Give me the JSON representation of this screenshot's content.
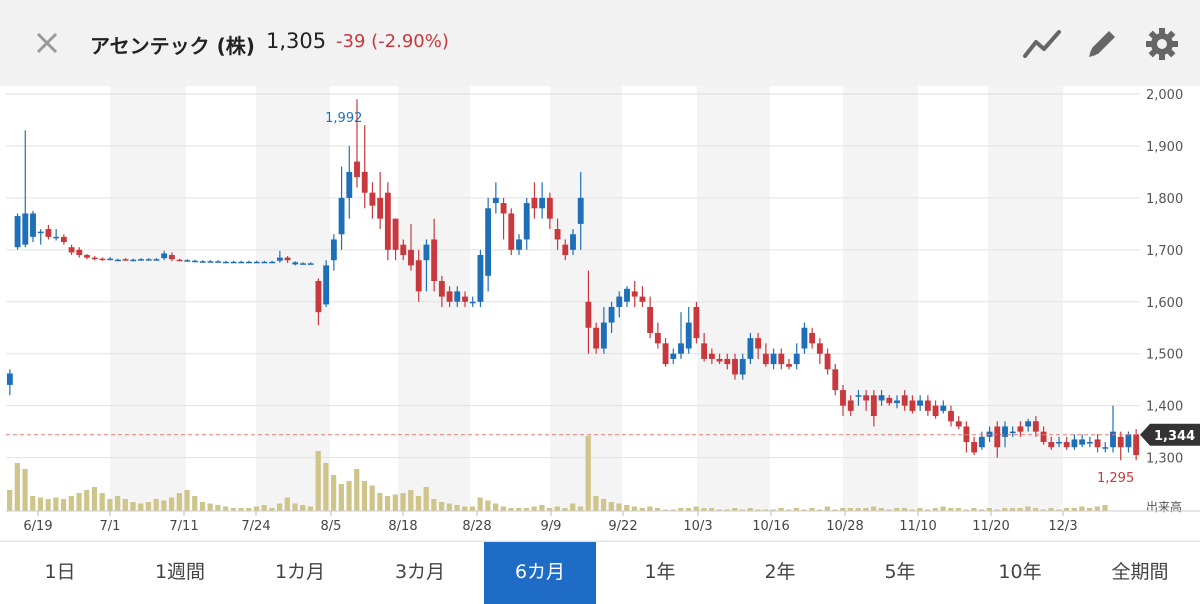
{
  "header": {
    "title": "アセンテック (株)",
    "price": "1,305",
    "change": "-39 (-2.90%)",
    "icons": [
      "close-icon",
      "line-chart-icon",
      "pencil-icon",
      "gear-icon"
    ]
  },
  "colors": {
    "up": "#1e6fb8",
    "down": "#c8383d",
    "volume": "#cfc48a",
    "accent": "#1f6cc7"
  },
  "tabs": [
    {
      "label": "1日"
    },
    {
      "label": "1週間"
    },
    {
      "label": "1カ月"
    },
    {
      "label": "3カ月"
    },
    {
      "label": "6カ月",
      "active": true
    },
    {
      "label": "1年"
    },
    {
      "label": "2年"
    },
    {
      "label": "5年"
    },
    {
      "label": "10年"
    },
    {
      "label": "全期間"
    }
  ],
  "chart_data": {
    "type": "candlestick",
    "ylim": [
      1280,
      2000
    ],
    "yticks": [
      {
        "v": 1300,
        "label": "1,300"
      },
      {
        "v": 1400,
        "label": "1,400"
      },
      {
        "v": 1500,
        "label": "1,500"
      },
      {
        "v": 1600,
        "label": "1,600"
      },
      {
        "v": 1700,
        "label": "1,700"
      },
      {
        "v": 1800,
        "label": "1,800"
      },
      {
        "v": 1900,
        "label": "1,900"
      },
      {
        "v": 2000,
        "label": "2,000"
      }
    ],
    "xticks": [
      "6/19",
      "7/1",
      "7/11",
      "7/24",
      "8/5",
      "8/18",
      "8/28",
      "9/9",
      "9/22",
      "10/3",
      "10/16",
      "10/28",
      "11/10",
      "11/20",
      "12/3"
    ],
    "high_label": "1,992",
    "low_label": "1,295",
    "current_label": "1,344",
    "current_value": 1344,
    "volume_label": "出来高",
    "grid": true,
    "candles": [
      [
        1440,
        1462,
        1420,
        1470
      ],
      [
        1705,
        1765,
        1700,
        1770
      ],
      [
        1710,
        1770,
        1705,
        1930
      ],
      [
        1725,
        1770,
        1715,
        1775
      ],
      [
        1735,
        1735,
        1710,
        1740
      ],
      [
        1740,
        1725,
        1720,
        1748
      ],
      [
        1725,
        1725,
        1718,
        1740
      ],
      [
        1725,
        1715,
        1710,
        1730
      ],
      [
        1705,
        1695,
        1690,
        1710
      ],
      [
        1700,
        1690,
        1685,
        1705
      ],
      [
        1690,
        1685,
        1682,
        1692
      ],
      [
        1685,
        1682,
        1680,
        1688
      ],
      [
        1683,
        1681,
        1679,
        1685
      ],
      [
        1682,
        1683,
        1680,
        1686
      ],
      [
        1681,
        1681,
        1679,
        1683
      ],
      [
        1682,
        1681,
        1679,
        1684
      ],
      [
        1680,
        1681,
        1678,
        1683
      ],
      [
        1681,
        1682,
        1679,
        1684
      ],
      [
        1681,
        1682,
        1680,
        1684
      ],
      [
        1682,
        1682,
        1679,
        1684
      ],
      [
        1684,
        1693,
        1680,
        1698
      ],
      [
        1690,
        1682,
        1678,
        1695
      ],
      [
        1681,
        1680,
        1678,
        1683
      ],
      [
        1680,
        1680,
        1677,
        1682
      ],
      [
        1679,
        1679,
        1676,
        1681
      ],
      [
        1678,
        1678,
        1676,
        1680
      ],
      [
        1678,
        1678,
        1676,
        1680
      ],
      [
        1678,
        1678,
        1676,
        1680
      ],
      [
        1677,
        1677,
        1675,
        1679
      ],
      [
        1677,
        1677,
        1675,
        1679
      ],
      [
        1677,
        1677,
        1675,
        1679
      ],
      [
        1677,
        1677,
        1675,
        1679
      ],
      [
        1677,
        1677,
        1675,
        1679
      ],
      [
        1677,
        1677,
        1675,
        1679
      ],
      [
        1677,
        1677,
        1675,
        1679
      ],
      [
        1679,
        1685,
        1675,
        1698
      ],
      [
        1685,
        1680,
        1675,
        1688
      ],
      [
        1672,
        1676,
        1670,
        1678
      ],
      [
        1674,
        1674,
        1672,
        1676
      ],
      [
        1674,
        1674,
        1672,
        1676
      ],
      [
        1640,
        1580,
        1555,
        1645
      ],
      [
        1595,
        1670,
        1590,
        1680
      ],
      [
        1680,
        1720,
        1660,
        1730
      ],
      [
        1730,
        1800,
        1700,
        1860
      ],
      [
        1800,
        1850,
        1760,
        1900
      ],
      [
        1870,
        1840,
        1820,
        1990
      ],
      [
        1850,
        1810,
        1780,
        1940
      ],
      [
        1810,
        1785,
        1760,
        1830
      ],
      [
        1800,
        1760,
        1740,
        1850
      ],
      [
        1810,
        1700,
        1680,
        1830
      ],
      [
        1760,
        1700,
        1680,
        1760
      ],
      [
        1710,
        1690,
        1680,
        1720
      ],
      [
        1700,
        1670,
        1660,
        1750
      ],
      [
        1680,
        1620,
        1600,
        1700
      ],
      [
        1680,
        1710,
        1620,
        1720
      ],
      [
        1720,
        1640,
        1620,
        1760
      ],
      [
        1640,
        1610,
        1590,
        1650
      ],
      [
        1620,
        1600,
        1590,
        1630
      ],
      [
        1600,
        1620,
        1590,
        1630
      ],
      [
        1610,
        1600,
        1590,
        1620
      ],
      [
        1600,
        1600,
        1590,
        1610
      ],
      [
        1600,
        1690,
        1590,
        1700
      ],
      [
        1650,
        1780,
        1620,
        1800
      ],
      [
        1790,
        1800,
        1770,
        1830
      ],
      [
        1790,
        1770,
        1720,
        1800
      ],
      [
        1770,
        1700,
        1690,
        1780
      ],
      [
        1700,
        1720,
        1690,
        1730
      ],
      [
        1720,
        1790,
        1700,
        1800
      ],
      [
        1800,
        1780,
        1760,
        1830
      ],
      [
        1780,
        1800,
        1760,
        1830
      ],
      [
        1800,
        1760,
        1740,
        1810
      ],
      [
        1740,
        1720,
        1700,
        1760
      ],
      [
        1710,
        1690,
        1680,
        1720
      ],
      [
        1700,
        1730,
        1690,
        1740
      ],
      [
        1750,
        1800,
        1700,
        1850
      ],
      [
        1600,
        1550,
        1500,
        1660
      ],
      [
        1550,
        1510,
        1500,
        1560
      ],
      [
        1510,
        1560,
        1500,
        1590
      ],
      [
        1560,
        1590,
        1540,
        1600
      ],
      [
        1590,
        1610,
        1570,
        1620
      ],
      [
        1600,
        1625,
        1590,
        1630
      ],
      [
        1620,
        1610,
        1590,
        1640
      ],
      [
        1610,
        1600,
        1590,
        1630
      ],
      [
        1590,
        1540,
        1530,
        1610
      ],
      [
        1540,
        1520,
        1510,
        1560
      ],
      [
        1520,
        1480,
        1475,
        1530
      ],
      [
        1490,
        1500,
        1480,
        1510
      ],
      [
        1500,
        1520,
        1490,
        1580
      ],
      [
        1510,
        1560,
        1500,
        1590
      ],
      [
        1590,
        1530,
        1520,
        1600
      ],
      [
        1520,
        1490,
        1485,
        1540
      ],
      [
        1500,
        1490,
        1480,
        1510
      ],
      [
        1490,
        1485,
        1480,
        1500
      ],
      [
        1490,
        1480,
        1470,
        1500
      ],
      [
        1490,
        1460,
        1450,
        1500
      ],
      [
        1460,
        1490,
        1450,
        1500
      ],
      [
        1490,
        1530,
        1480,
        1540
      ],
      [
        1530,
        1510,
        1490,
        1540
      ],
      [
        1500,
        1480,
        1475,
        1520
      ],
      [
        1480,
        1500,
        1470,
        1510
      ],
      [
        1500,
        1480,
        1470,
        1510
      ],
      [
        1480,
        1475,
        1470,
        1490
      ],
      [
        1480,
        1500,
        1470,
        1520
      ],
      [
        1510,
        1550,
        1500,
        1560
      ],
      [
        1540,
        1520,
        1510,
        1550
      ],
      [
        1520,
        1500,
        1480,
        1530
      ],
      [
        1500,
        1470,
        1460,
        1510
      ],
      [
        1470,
        1430,
        1420,
        1480
      ],
      [
        1430,
        1400,
        1380,
        1440
      ],
      [
        1410,
        1390,
        1380,
        1420
      ],
      [
        1420,
        1420,
        1400,
        1430
      ],
      [
        1420,
        1410,
        1390,
        1430
      ],
      [
        1420,
        1380,
        1360,
        1430
      ],
      [
        1410,
        1420,
        1400,
        1430
      ],
      [
        1415,
        1405,
        1400,
        1420
      ],
      [
        1405,
        1410,
        1395,
        1420
      ],
      [
        1420,
        1400,
        1390,
        1430
      ],
      [
        1410,
        1390,
        1385,
        1420
      ],
      [
        1400,
        1410,
        1390,
        1420
      ],
      [
        1410,
        1390,
        1380,
        1420
      ],
      [
        1400,
        1380,
        1375,
        1410
      ],
      [
        1390,
        1400,
        1385,
        1410
      ],
      [
        1390,
        1370,
        1360,
        1400
      ],
      [
        1370,
        1360,
        1355,
        1380
      ],
      [
        1360,
        1330,
        1310,
        1370
      ],
      [
        1330,
        1310,
        1305,
        1340
      ],
      [
        1320,
        1340,
        1315,
        1350
      ],
      [
        1340,
        1350,
        1330,
        1360
      ],
      [
        1360,
        1320,
        1300,
        1370
      ],
      [
        1340,
        1360,
        1320,
        1370
      ],
      [
        1350,
        1350,
        1340,
        1360
      ],
      [
        1360,
        1350,
        1340,
        1370
      ],
      [
        1360,
        1370,
        1350,
        1375
      ],
      [
        1370,
        1350,
        1340,
        1380
      ],
      [
        1350,
        1330,
        1325,
        1360
      ],
      [
        1330,
        1320,
        1315,
        1340
      ],
      [
        1330,
        1330,
        1320,
        1340
      ],
      [
        1330,
        1320,
        1315,
        1340
      ],
      [
        1320,
        1335,
        1315,
        1345
      ],
      [
        1325,
        1335,
        1320,
        1345
      ],
      [
        1330,
        1330,
        1320,
        1340
      ],
      [
        1335,
        1320,
        1310,
        1345
      ],
      [
        1320,
        1320,
        1310,
        1330
      ],
      [
        1320,
        1350,
        1310,
        1400
      ],
      [
        1340,
        1320,
        1295,
        1350
      ],
      [
        1320,
        1345,
        1310,
        1350
      ],
      [
        1345,
        1305,
        1295,
        1355
      ]
    ],
    "volume": [
      14,
      32,
      28,
      10,
      9,
      8,
      9,
      8,
      10,
      12,
      14,
      16,
      12,
      8,
      10,
      8,
      6,
      5,
      6,
      8,
      7,
      9,
      12,
      14,
      10,
      6,
      5,
      4,
      3,
      2,
      2,
      2,
      3,
      4,
      2,
      5,
      9,
      5,
      4,
      3,
      40,
      32,
      24,
      18,
      20,
      28,
      20,
      17,
      12,
      10,
      11,
      12,
      14,
      10,
      16,
      8,
      6,
      5,
      4,
      3,
      3,
      9,
      7,
      5,
      3,
      2,
      2,
      2,
      3,
      4,
      2,
      3,
      2,
      5,
      3,
      50,
      10,
      8,
      6,
      5,
      4,
      3,
      2,
      3,
      2,
      1,
      1,
      2,
      2,
      3,
      2,
      2,
      1,
      1,
      2,
      1,
      2,
      1,
      1,
      1,
      2,
      1,
      2,
      1,
      2,
      1,
      3,
      1,
      2,
      2,
      2,
      2,
      3,
      2,
      1,
      2,
      2,
      1,
      2,
      1,
      2,
      3,
      2,
      2,
      1,
      2,
      1,
      2,
      1,
      2,
      2,
      2,
      3,
      2,
      1,
      2,
      1,
      2,
      2,
      3,
      2,
      3,
      4
    ]
  }
}
